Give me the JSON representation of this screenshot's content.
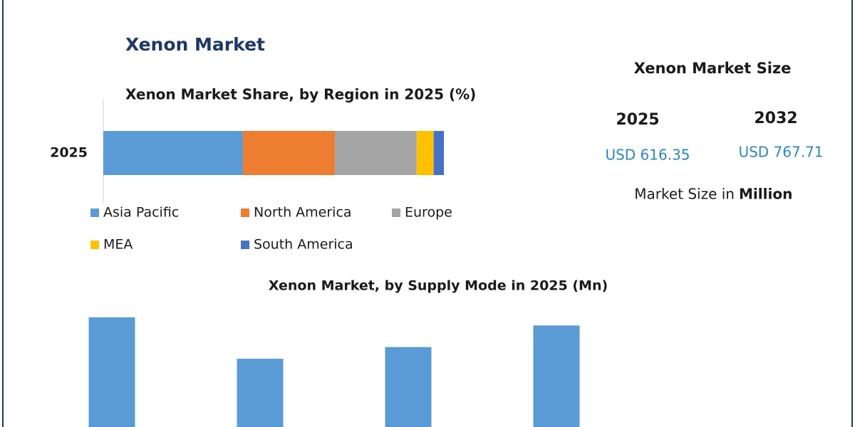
{
  "title": "Xenon Market",
  "chart_data": [
    {
      "type": "bar",
      "orientation": "horizontal",
      "stacked": true,
      "title": "Xenon Market Share, by Region in 2025 (%)",
      "categories": [
        "2025"
      ],
      "xlim": [
        0,
        100
      ],
      "series": [
        {
          "name": "Asia Pacific",
          "color": "#5b9bd5",
          "values": [
            41
          ]
        },
        {
          "name": "North America",
          "color": "#ed7d31",
          "values": [
            27
          ]
        },
        {
          "name": "Europe",
          "color": "#a5a5a5",
          "values": [
            24
          ]
        },
        {
          "name": "MEA",
          "color": "#ffc000",
          "values": [
            5
          ]
        },
        {
          "name": "South America",
          "color": "#4472c4",
          "values": [
            3
          ]
        }
      ]
    },
    {
      "type": "bar",
      "orientation": "vertical",
      "title": "Xenon Market, by Supply Mode in 2025 (Mn)",
      "categories": [
        null,
        null,
        null,
        null
      ],
      "values": [
        188,
        117,
        137,
        174
      ],
      "color": "#5b9bd5",
      "ylim": [
        0,
        200
      ]
    }
  ],
  "market_size": {
    "title": "Xenon Market Size",
    "years": [
      "2025",
      "2032"
    ],
    "values": [
      "USD 616.35",
      "USD 767.71"
    ],
    "note": "Market Size in",
    "unit": "Million"
  }
}
